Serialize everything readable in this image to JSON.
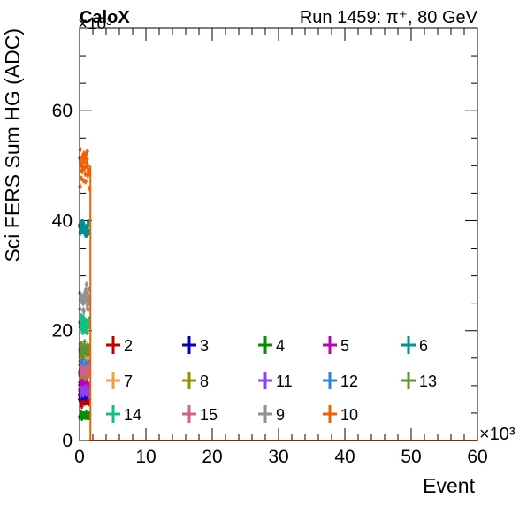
{
  "chart_data": {
    "type": "scatter",
    "experiment_label": "CaloX",
    "title": "Run 1459: π⁺, 80 GeV",
    "xlabel": "Event",
    "ylabel": "Sci FERS Sum HG (ADC)",
    "x_multiplier": "×10³",
    "y_multiplier": "×10³",
    "xlim": [
      0,
      60
    ],
    "ylim": [
      0,
      75
    ],
    "x_ticks": [
      0,
      10,
      20,
      30,
      40,
      50,
      60
    ],
    "y_ticks": [
      0,
      20,
      40,
      60
    ],
    "legend_placement": "bottom",
    "series": [
      {
        "name": "2",
        "color": "#c00000",
        "x_range": [
          0,
          1.5
        ],
        "y_center": 7.5,
        "y_spread": 1.0
      },
      {
        "name": "3",
        "color": "#0000c0",
        "x_range": [
          0,
          1.5
        ],
        "y_center": 8.5,
        "y_spread": 0.8
      },
      {
        "name": "4",
        "color": "#009000",
        "x_range": [
          0,
          1.5
        ],
        "y_center": 4.5,
        "y_spread": 0.5
      },
      {
        "name": "5",
        "color": "#c000c0",
        "x_range": [
          0,
          1.5
        ],
        "y_center": 10.0,
        "y_spread": 1.0
      },
      {
        "name": "6",
        "color": "#009090",
        "x_range": [
          0,
          1.5
        ],
        "y_center": 38.5,
        "y_spread": 1.5
      },
      {
        "name": "7",
        "color": "#f0a040",
        "x_range": [
          0,
          1.5
        ],
        "y_center": 15.0,
        "y_spread": 1.5
      },
      {
        "name": "8",
        "color": "#909000",
        "x_range": [
          0,
          1.5
        ],
        "y_center": 12.0,
        "y_spread": 1.0
      },
      {
        "name": "11",
        "color": "#9040f0",
        "x_range": [
          0,
          1.5
        ],
        "y_center": 9.0,
        "y_spread": 0.8
      },
      {
        "name": "12",
        "color": "#3080e0",
        "x_range": [
          0,
          1.5
        ],
        "y_center": 13.5,
        "y_spread": 1.0
      },
      {
        "name": "13",
        "color": "#609030",
        "x_range": [
          0,
          1.5
        ],
        "y_center": 16.5,
        "y_spread": 1.2
      },
      {
        "name": "14",
        "color": "#10c080",
        "x_range": [
          0,
          1.5
        ],
        "y_center": 21.0,
        "y_spread": 1.5
      },
      {
        "name": "15",
        "color": "#d06090",
        "x_range": [
          0,
          1.5
        ],
        "y_center": 12.5,
        "y_spread": 1.0
      },
      {
        "name": "9",
        "color": "#909090",
        "x_range": [
          0,
          1.5
        ],
        "y_center": 26.0,
        "y_spread": 2.0
      },
      {
        "name": "10",
        "color": "#f06000",
        "x_range": [
          0,
          1.5
        ],
        "y_center": 50.0,
        "y_spread": 3.5
      }
    ]
  }
}
